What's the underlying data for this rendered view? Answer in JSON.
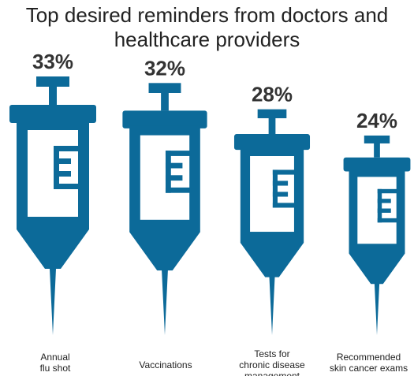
{
  "title_lines": [
    "Top desired reminders from doctors and",
    "healthcare providers"
  ],
  "colors": {
    "syringe": "#0c6a99",
    "fill_white": "#ffffff",
    "text": "#222222",
    "value_text": "#333333"
  },
  "chart_data": {
    "type": "bar",
    "title": "Top desired reminders from doctors and healthcare providers",
    "categories": [
      "Annual\nflu shot",
      "Vaccinations",
      "Tests for\nchronic disease\nmanagement",
      "Recommended\nskin cancer exams"
    ],
    "values": [
      33,
      32,
      28,
      24
    ],
    "value_labels": [
      "33%",
      "32%",
      "28%",
      "24%"
    ],
    "unit": "%",
    "legend": "none",
    "grid": false
  }
}
